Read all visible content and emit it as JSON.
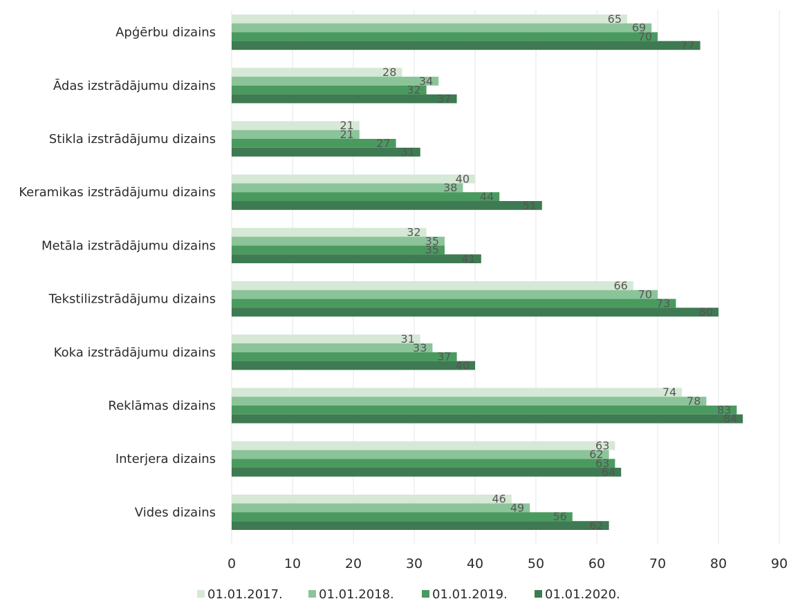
{
  "chart_data": {
    "type": "bar",
    "orientation": "horizontal",
    "title": "",
    "xlabel": "",
    "ylabel": "",
    "xlim": [
      0,
      90
    ],
    "x_ticks": [
      0,
      10,
      20,
      30,
      40,
      50,
      60,
      70,
      80,
      90
    ],
    "grid": "vertical",
    "legend_position": "bottom",
    "data_labels": true,
    "categories": [
      "Apģērbu dizains",
      "Ādas izstrādājumu dizains",
      "Stikla izstrādājumu dizains",
      "Keramikas izstrādājumu dizains",
      "Metāla izstrādājumu dizains",
      "Tekstilizstrādājumu dizains",
      "Koka izstrādājumu dizains",
      "Reklāmas dizains",
      "Interjera dizains",
      "Vides dizains"
    ],
    "series": [
      {
        "name": "01.01.2017.",
        "color": "#d6e8d6",
        "values": [
          65,
          28,
          21,
          40,
          32,
          66,
          31,
          74,
          63,
          46
        ]
      },
      {
        "name": "01.01.2018.",
        "color": "#8cc49a",
        "values": [
          69,
          34,
          21,
          38,
          35,
          70,
          33,
          78,
          62,
          49
        ]
      },
      {
        "name": "01.01.2019.",
        "color": "#4a9a60",
        "values": [
          70,
          32,
          27,
          44,
          35,
          73,
          37,
          83,
          63,
          56
        ]
      },
      {
        "name": "01.01.2020.",
        "color": "#3e7a52",
        "values": [
          77,
          37,
          31,
          51,
          41,
          80,
          40,
          84,
          64,
          62
        ]
      }
    ]
  }
}
